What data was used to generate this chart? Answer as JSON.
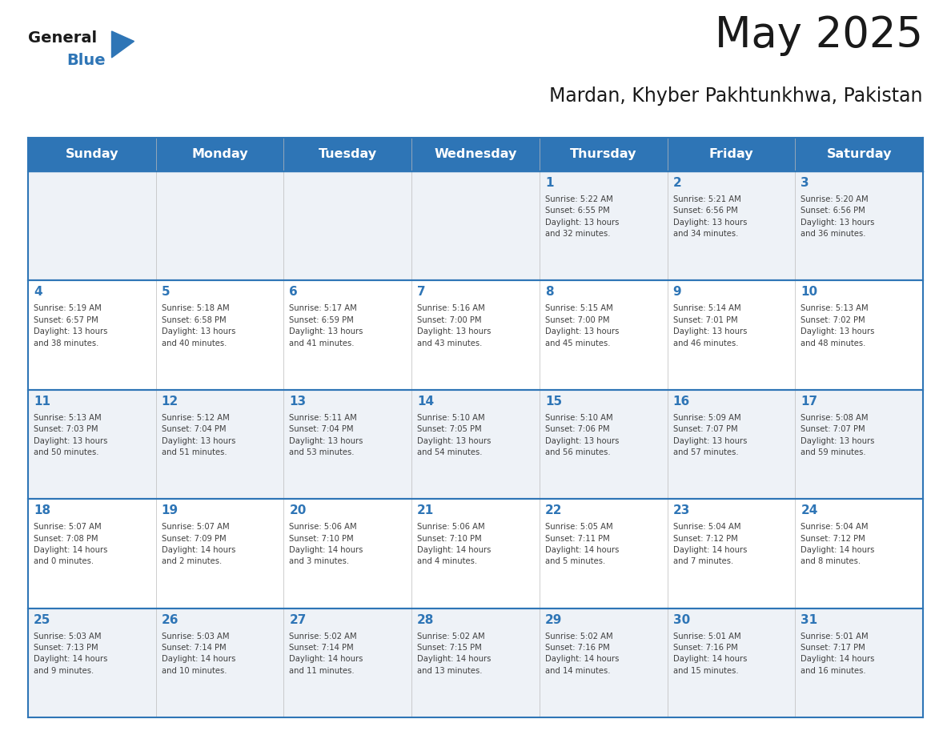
{
  "title": "May 2025",
  "subtitle": "Mardan, Khyber Pakhtunkhwa, Pakistan",
  "header_bg": "#2E75B6",
  "header_text_color": "#FFFFFF",
  "cell_bg_alt": "#F0F4F8",
  "cell_bg_white": "#FFFFFF",
  "day_number_color": "#2E75B6",
  "text_color": "#404040",
  "line_color": "#2E75B6",
  "days_of_week": [
    "Sunday",
    "Monday",
    "Tuesday",
    "Wednesday",
    "Thursday",
    "Friday",
    "Saturday"
  ],
  "weeks": [
    [
      {
        "day": "",
        "info": ""
      },
      {
        "day": "",
        "info": ""
      },
      {
        "day": "",
        "info": ""
      },
      {
        "day": "",
        "info": ""
      },
      {
        "day": "1",
        "info": "Sunrise: 5:22 AM\nSunset: 6:55 PM\nDaylight: 13 hours\nand 32 minutes."
      },
      {
        "day": "2",
        "info": "Sunrise: 5:21 AM\nSunset: 6:56 PM\nDaylight: 13 hours\nand 34 minutes."
      },
      {
        "day": "3",
        "info": "Sunrise: 5:20 AM\nSunset: 6:56 PM\nDaylight: 13 hours\nand 36 minutes."
      }
    ],
    [
      {
        "day": "4",
        "info": "Sunrise: 5:19 AM\nSunset: 6:57 PM\nDaylight: 13 hours\nand 38 minutes."
      },
      {
        "day": "5",
        "info": "Sunrise: 5:18 AM\nSunset: 6:58 PM\nDaylight: 13 hours\nand 40 minutes."
      },
      {
        "day": "6",
        "info": "Sunrise: 5:17 AM\nSunset: 6:59 PM\nDaylight: 13 hours\nand 41 minutes."
      },
      {
        "day": "7",
        "info": "Sunrise: 5:16 AM\nSunset: 7:00 PM\nDaylight: 13 hours\nand 43 minutes."
      },
      {
        "day": "8",
        "info": "Sunrise: 5:15 AM\nSunset: 7:00 PM\nDaylight: 13 hours\nand 45 minutes."
      },
      {
        "day": "9",
        "info": "Sunrise: 5:14 AM\nSunset: 7:01 PM\nDaylight: 13 hours\nand 46 minutes."
      },
      {
        "day": "10",
        "info": "Sunrise: 5:13 AM\nSunset: 7:02 PM\nDaylight: 13 hours\nand 48 minutes."
      }
    ],
    [
      {
        "day": "11",
        "info": "Sunrise: 5:13 AM\nSunset: 7:03 PM\nDaylight: 13 hours\nand 50 minutes."
      },
      {
        "day": "12",
        "info": "Sunrise: 5:12 AM\nSunset: 7:04 PM\nDaylight: 13 hours\nand 51 minutes."
      },
      {
        "day": "13",
        "info": "Sunrise: 5:11 AM\nSunset: 7:04 PM\nDaylight: 13 hours\nand 53 minutes."
      },
      {
        "day": "14",
        "info": "Sunrise: 5:10 AM\nSunset: 7:05 PM\nDaylight: 13 hours\nand 54 minutes."
      },
      {
        "day": "15",
        "info": "Sunrise: 5:10 AM\nSunset: 7:06 PM\nDaylight: 13 hours\nand 56 minutes."
      },
      {
        "day": "16",
        "info": "Sunrise: 5:09 AM\nSunset: 7:07 PM\nDaylight: 13 hours\nand 57 minutes."
      },
      {
        "day": "17",
        "info": "Sunrise: 5:08 AM\nSunset: 7:07 PM\nDaylight: 13 hours\nand 59 minutes."
      }
    ],
    [
      {
        "day": "18",
        "info": "Sunrise: 5:07 AM\nSunset: 7:08 PM\nDaylight: 14 hours\nand 0 minutes."
      },
      {
        "day": "19",
        "info": "Sunrise: 5:07 AM\nSunset: 7:09 PM\nDaylight: 14 hours\nand 2 minutes."
      },
      {
        "day": "20",
        "info": "Sunrise: 5:06 AM\nSunset: 7:10 PM\nDaylight: 14 hours\nand 3 minutes."
      },
      {
        "day": "21",
        "info": "Sunrise: 5:06 AM\nSunset: 7:10 PM\nDaylight: 14 hours\nand 4 minutes."
      },
      {
        "day": "22",
        "info": "Sunrise: 5:05 AM\nSunset: 7:11 PM\nDaylight: 14 hours\nand 5 minutes."
      },
      {
        "day": "23",
        "info": "Sunrise: 5:04 AM\nSunset: 7:12 PM\nDaylight: 14 hours\nand 7 minutes."
      },
      {
        "day": "24",
        "info": "Sunrise: 5:04 AM\nSunset: 7:12 PM\nDaylight: 14 hours\nand 8 minutes."
      }
    ],
    [
      {
        "day": "25",
        "info": "Sunrise: 5:03 AM\nSunset: 7:13 PM\nDaylight: 14 hours\nand 9 minutes."
      },
      {
        "day": "26",
        "info": "Sunrise: 5:03 AM\nSunset: 7:14 PM\nDaylight: 14 hours\nand 10 minutes."
      },
      {
        "day": "27",
        "info": "Sunrise: 5:02 AM\nSunset: 7:14 PM\nDaylight: 14 hours\nand 11 minutes."
      },
      {
        "day": "28",
        "info": "Sunrise: 5:02 AM\nSunset: 7:15 PM\nDaylight: 14 hours\nand 13 minutes."
      },
      {
        "day": "29",
        "info": "Sunrise: 5:02 AM\nSunset: 7:16 PM\nDaylight: 14 hours\nand 14 minutes."
      },
      {
        "day": "30",
        "info": "Sunrise: 5:01 AM\nSunset: 7:16 PM\nDaylight: 14 hours\nand 15 minutes."
      },
      {
        "day": "31",
        "info": "Sunrise: 5:01 AM\nSunset: 7:17 PM\nDaylight: 14 hours\nand 16 minutes."
      }
    ]
  ]
}
